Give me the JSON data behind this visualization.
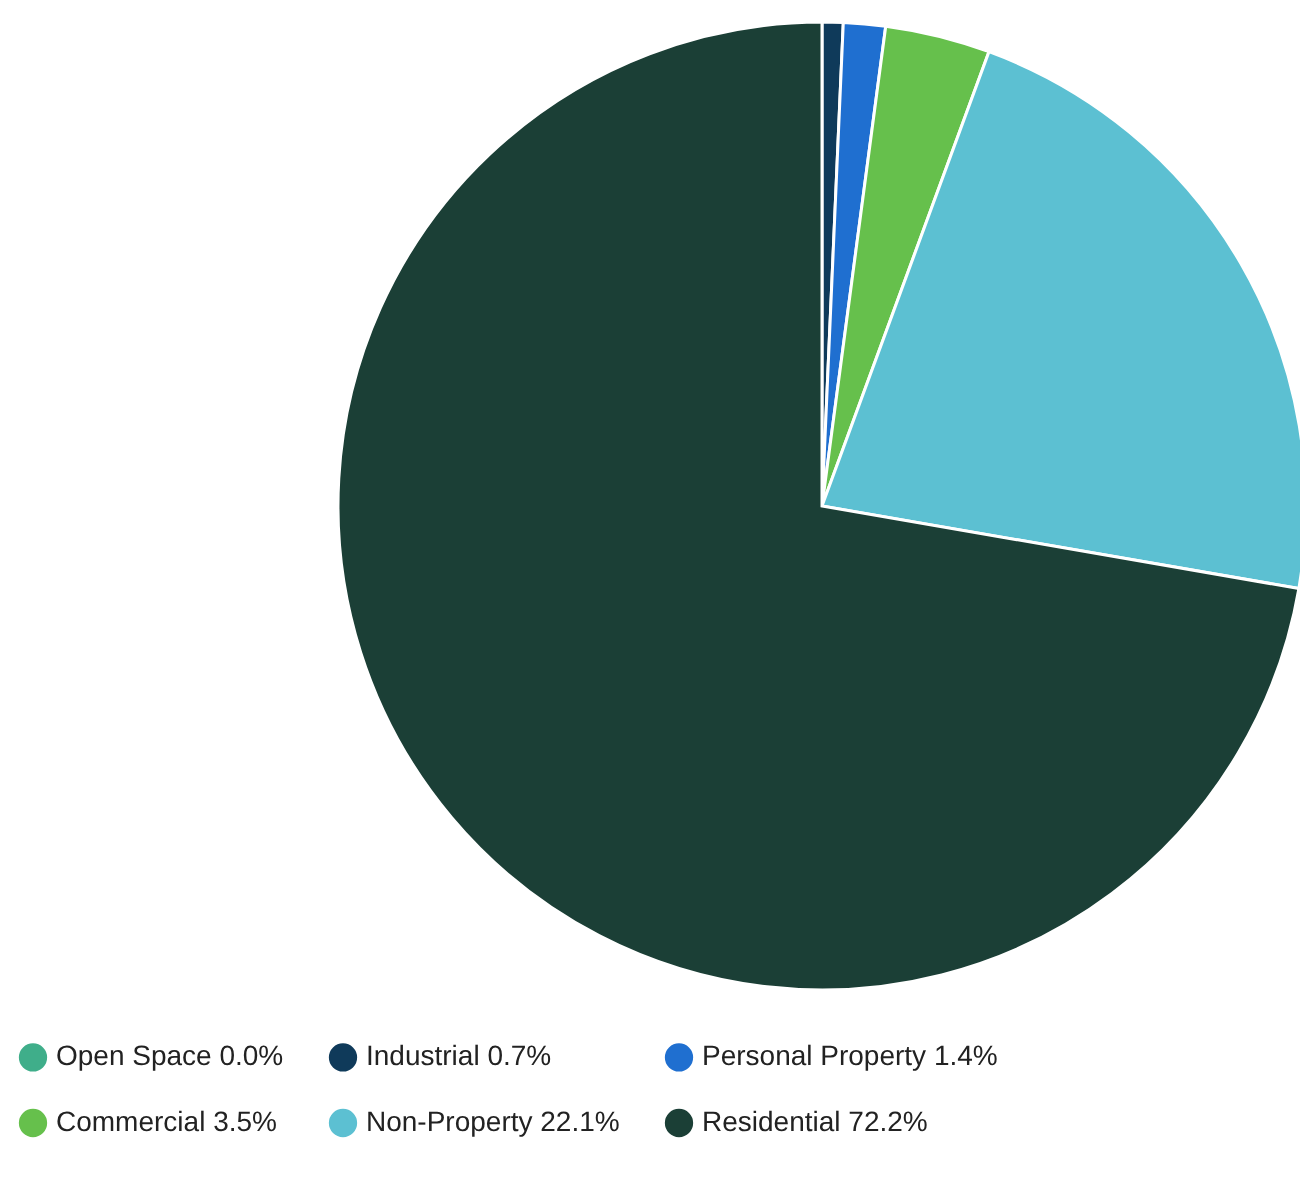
{
  "chart_data": {
    "type": "pie",
    "categories": [
      "Open Space 0.0%",
      "Industrial 0.7%",
      "Personal Property 1.4%",
      "Commercial 3.5%",
      "Non-Property 22.1%",
      "Residential 72.2%"
    ],
    "values": [
      0.0,
      0.7,
      1.4,
      3.5,
      22.1,
      72.2
    ],
    "colors": [
      "#3fae8a",
      "#0f3a5a",
      "#1f6fd0",
      "#66c04c",
      "#5cc0d2",
      "#1b3f36"
    ],
    "legend": "bottom"
  }
}
